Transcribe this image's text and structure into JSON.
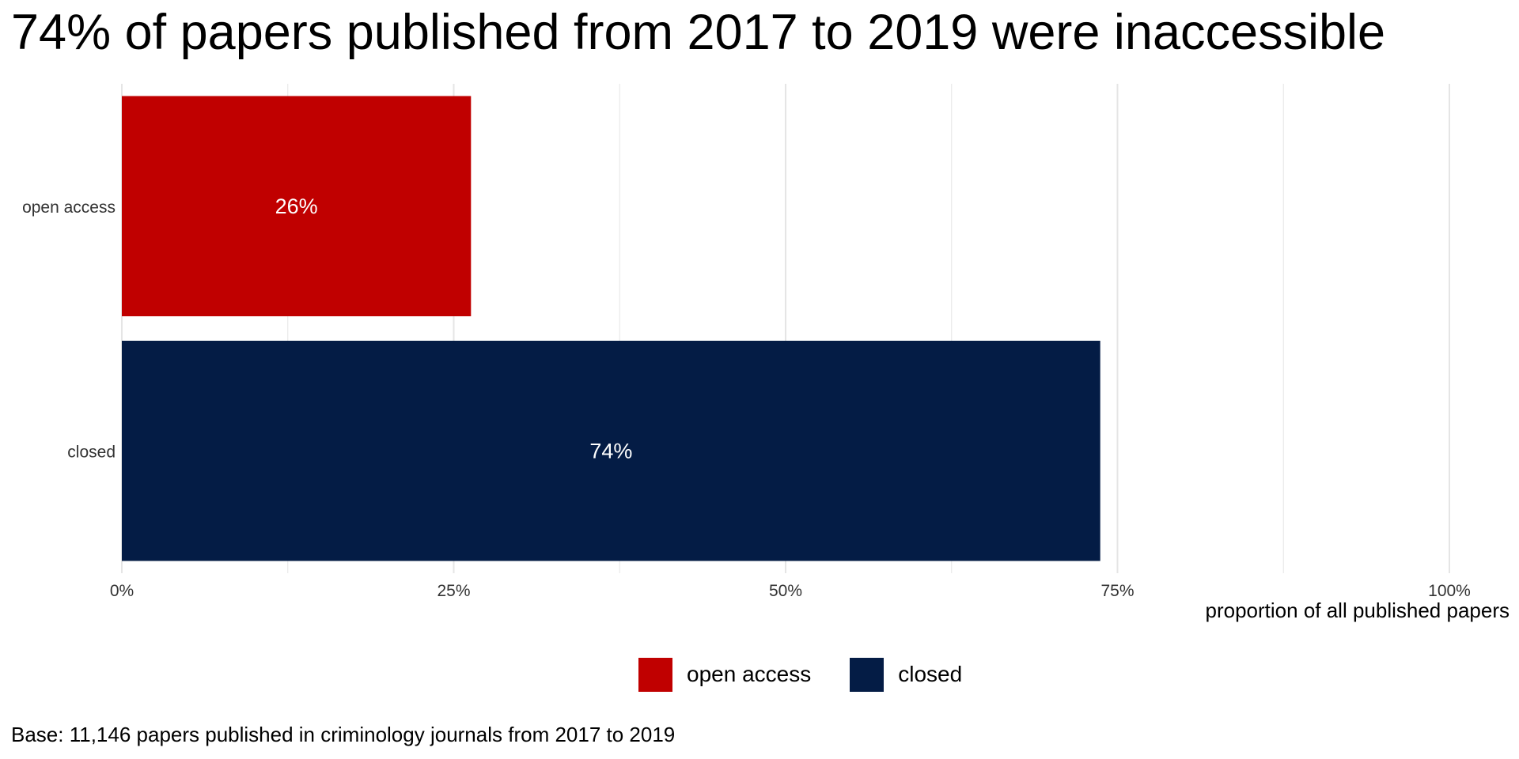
{
  "chart_data": {
    "type": "bar",
    "orientation": "horizontal",
    "title": "74% of papers published from 2017 to 2019 were inaccessible",
    "categories": [
      "open access",
      "closed"
    ],
    "values": [
      26.3,
      73.7
    ],
    "value_labels": [
      "26%",
      "74%"
    ],
    "xlabel": "proportion of all published papers",
    "ylabel": "",
    "xlim": [
      0,
      100
    ],
    "x_ticks": [
      0,
      25,
      50,
      75,
      100
    ],
    "x_tick_labels": [
      "0%",
      "25%",
      "50%",
      "75%",
      "100%"
    ],
    "grid": true,
    "legend": {
      "position": "bottom",
      "entries": [
        "open access",
        "closed"
      ]
    },
    "caption": "Base: 11,146 papers published in criminology journals from 2017 to 2019"
  },
  "colors": {
    "open_access": "#c00000",
    "closed": "#041c45",
    "grid": "#e5e5e5",
    "bar_label": "#ffffff",
    "axis_text": "#333333"
  }
}
